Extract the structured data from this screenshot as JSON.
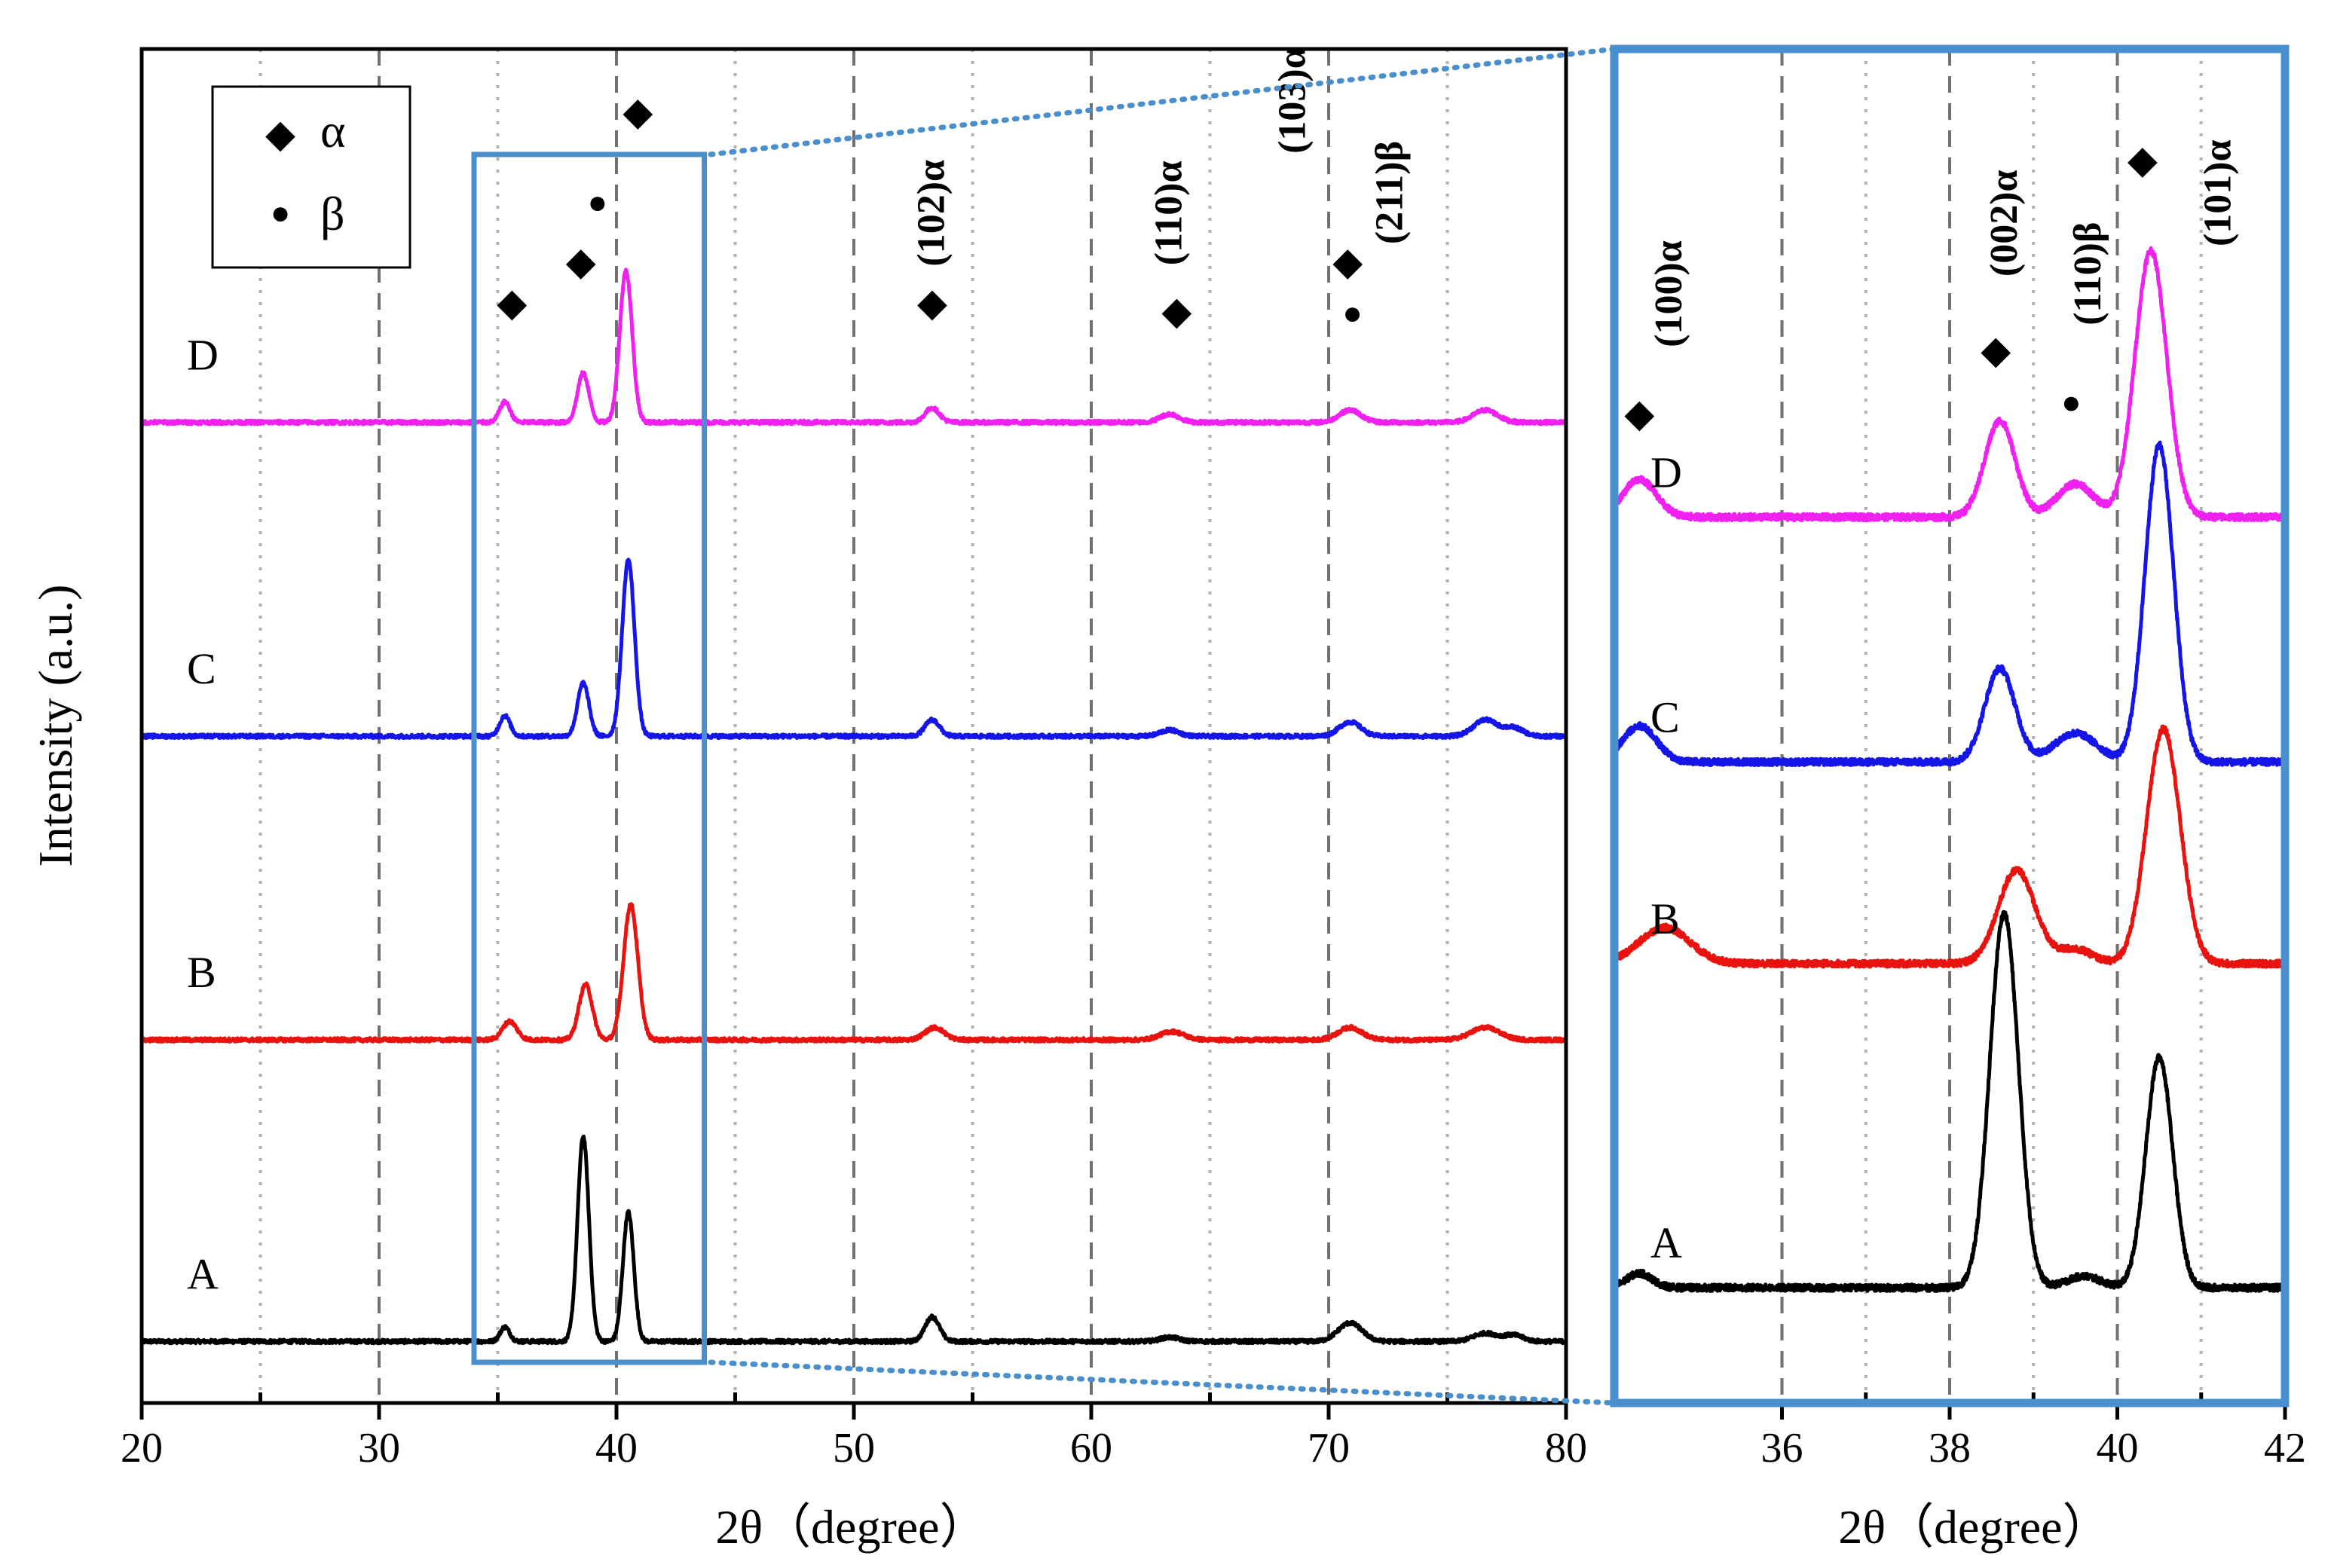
{
  "chart_data": [
    {
      "id": "main",
      "type": "line",
      "xlabel": "2θ（degree）",
      "ylabel": "Intensity (a.u.)",
      "xlim": [
        20,
        80
      ],
      "xticks": [
        20,
        30,
        40,
        50,
        60,
        70,
        80
      ],
      "dashed_gridlines_x": [
        30,
        40,
        50,
        60,
        70
      ],
      "dotted_gridlines_x": [
        25,
        35,
        45,
        55,
        65,
        75
      ],
      "legend": {
        "placement": "top-left",
        "entries": [
          {
            "marker": "◆",
            "label": "α"
          },
          {
            "marker": "●",
            "label": "β"
          }
        ]
      },
      "zoom_box_x": [
        34,
        43.7
      ],
      "series": [
        {
          "name": "A",
          "color": "#000000",
          "baseline": 0.0,
          "peaks": [
            [
              35.3,
              0.07,
              0.2
            ],
            [
              38.6,
              1.0,
              0.24
            ],
            [
              40.5,
              0.63,
              0.23
            ],
            [
              53.3,
              0.12,
              0.3
            ],
            [
              63.3,
              0.02,
              0.4
            ],
            [
              70.9,
              0.09,
              0.5
            ],
            [
              76.6,
              0.04,
              0.5
            ],
            [
              77.8,
              0.03,
              0.4
            ]
          ]
        },
        {
          "name": "B",
          "color": "#e8130f",
          "baseline": 1.47,
          "peaks": [
            [
              35.5,
              0.09,
              0.3
            ],
            [
              38.7,
              0.27,
              0.28
            ],
            [
              40.6,
              0.66,
              0.3
            ],
            [
              53.4,
              0.06,
              0.4
            ],
            [
              63.4,
              0.04,
              0.5
            ],
            [
              70.9,
              0.06,
              0.5
            ],
            [
              76.6,
              0.06,
              0.6
            ]
          ]
        },
        {
          "name": "C",
          "color": "#1515e8",
          "baseline": 2.95,
          "peaks": [
            [
              35.3,
              0.1,
              0.22
            ],
            [
              38.6,
              0.26,
              0.24
            ],
            [
              40.5,
              0.86,
              0.26
            ],
            [
              53.3,
              0.08,
              0.3
            ],
            [
              63.3,
              0.03,
              0.4
            ],
            [
              70.9,
              0.07,
              0.45
            ],
            [
              76.6,
              0.08,
              0.5
            ],
            [
              77.8,
              0.04,
              0.4
            ]
          ]
        },
        {
          "name": "D",
          "color": "#f020f0",
          "baseline": 4.48,
          "peaks": [
            [
              35.3,
              0.1,
              0.22
            ],
            [
              38.6,
              0.24,
              0.24
            ],
            [
              40.4,
              0.74,
              0.26
            ],
            [
              53.3,
              0.07,
              0.3
            ],
            [
              63.3,
              0.04,
              0.4
            ],
            [
              70.9,
              0.06,
              0.45
            ],
            [
              76.6,
              0.06,
              0.5
            ]
          ]
        }
      ],
      "ylim": [
        -0.3,
        6.3
      ],
      "annotations": [
        {
          "x": 35.6,
          "y": 5.0,
          "label": "◆"
        },
        {
          "x": 38.5,
          "y": 5.2,
          "label": "◆"
        },
        {
          "x": 39.2,
          "y": 5.5,
          "label": "●"
        },
        {
          "x": 40.9,
          "y": 5.93,
          "label": "◆"
        },
        {
          "x": 53.3,
          "y": 5.0,
          "label": "◆"
        },
        {
          "x": 63.6,
          "y": 4.96,
          "label": "◆"
        },
        {
          "x": 70.8,
          "y": 5.2,
          "label": "◆"
        },
        {
          "x": 71.0,
          "y": 4.96,
          "label": "●"
        },
        {
          "x": 53.8,
          "y": 5.5,
          "label": "(102)α",
          "rotate": true
        },
        {
          "x": 63.8,
          "y": 5.5,
          "label": "(110)α",
          "rotate": true
        },
        {
          "x": 69.0,
          "y": 6.05,
          "label": "(103)α",
          "rotate": true
        },
        {
          "x": 73.1,
          "y": 5.6,
          "label": "(211)β",
          "rotate": true
        }
      ]
    },
    {
      "id": "zoom",
      "type": "line",
      "xlabel": "2θ（degree）",
      "xlim": [
        34,
        42
      ],
      "xticks": [
        36,
        38,
        40,
        42
      ],
      "dashed_gridlines_x": [
        36,
        38,
        40
      ],
      "dotted_gridlines_x": [
        37,
        39,
        41
      ],
      "series": [
        {
          "name": "A",
          "color": "#000000",
          "baseline": 0.0,
          "peaks": [
            [
              34.3,
              0.1,
              0.15
            ],
            [
              38.65,
              2.6,
              0.17
            ],
            [
              39.6,
              0.08,
              0.2
            ],
            [
              40.5,
              1.6,
              0.16
            ]
          ]
        },
        {
          "name": "B",
          "color": "#e8130f",
          "baseline": 2.25,
          "peaks": [
            [
              34.6,
              0.25,
              0.3
            ],
            [
              38.8,
              0.65,
              0.22
            ],
            [
              39.5,
              0.1,
              0.2
            ],
            [
              40.55,
              1.63,
              0.2
            ]
          ]
        },
        {
          "name": "C",
          "color": "#1515e8",
          "baseline": 3.65,
          "peaks": [
            [
              34.3,
              0.25,
              0.2
            ],
            [
              38.6,
              0.65,
              0.18
            ],
            [
              39.5,
              0.2,
              0.25
            ],
            [
              40.5,
              2.2,
              0.17
            ]
          ]
        },
        {
          "name": "D",
          "color": "#f020f0",
          "baseline": 5.35,
          "peaks": [
            [
              34.3,
              0.26,
              0.2
            ],
            [
              38.6,
              0.67,
              0.18
            ],
            [
              39.5,
              0.23,
              0.22
            ],
            [
              40.4,
              1.85,
              0.19
            ]
          ]
        }
      ],
      "ylim": [
        -0.8,
        8.6
      ],
      "annotations": [
        {
          "x": 34.3,
          "y": 5.98,
          "label": "◆"
        },
        {
          "x": 38.55,
          "y": 6.42,
          "label": "◆"
        },
        {
          "x": 39.45,
          "y": 6.07,
          "label": "●"
        },
        {
          "x": 40.3,
          "y": 7.74,
          "label": "◆"
        },
        {
          "x": 34.8,
          "y": 6.9,
          "label": "(100)α",
          "rotate": true
        },
        {
          "x": 38.8,
          "y": 7.39,
          "label": "(002)α",
          "rotate": true
        },
        {
          "x": 39.8,
          "y": 7.04,
          "label": "(110)β",
          "rotate": true
        },
        {
          "x": 41.35,
          "y": 7.6,
          "label": "(101)α",
          "rotate": true
        }
      ]
    }
  ]
}
